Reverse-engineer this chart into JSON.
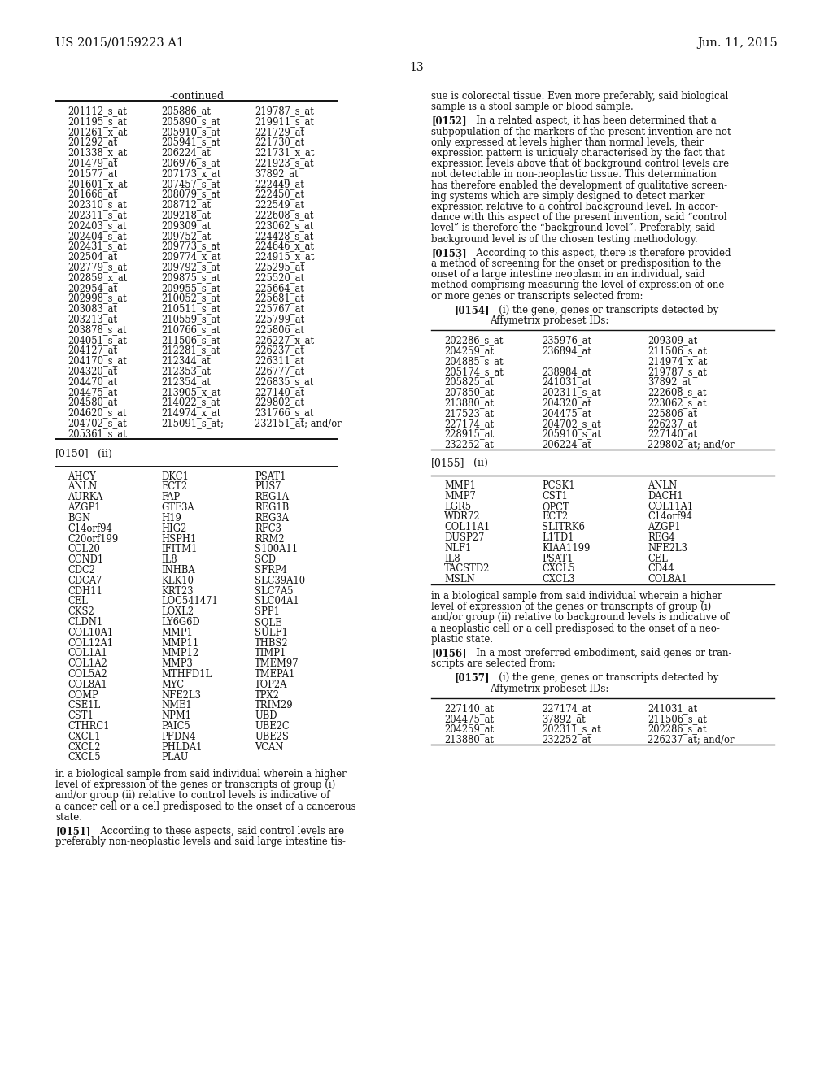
{
  "bg_color": "#ffffff",
  "header_left": "US 2015/0159223 A1",
  "header_right": "Jun. 11, 2015",
  "page_number": "13",
  "continued_label": "-continued",
  "t1c1": [
    "201112_s_at",
    "201195_s_at",
    "201261_x_at",
    "201292_at",
    "201338_x_at",
    "201479_at",
    "201577_at",
    "201601_x_at",
    "201666_at",
    "202310_s_at",
    "202311_s_at",
    "202403_s_at",
    "202404_s_at",
    "202431_s_at",
    "202504_at",
    "202779_s_at",
    "202859_x_at",
    "202954_at",
    "202998_s_at",
    "203083_at",
    "203213_at",
    "203878_s_at",
    "204051_s_at",
    "204127_at",
    "204170_s_at",
    "204320_at",
    "204470_at",
    "204475_at",
    "204580_at",
    "204620_s_at",
    "204702_s_at",
    "205361_s_at"
  ],
  "t1c2": [
    "205886_at",
    "205890_s_at",
    "205910_s_at",
    "205941_s_at",
    "206224_at",
    "206976_s_at",
    "207173_x_at",
    "207457_s_at",
    "208079_s_at",
    "208712_at",
    "209218_at",
    "209309_at",
    "209752_at",
    "209773_s_at",
    "209774_x_at",
    "209792_s_at",
    "209875_s_at",
    "209955_s_at",
    "210052_s_at",
    "210511_s_at",
    "210559_s_at",
    "210766_s_at",
    "211506_s_at",
    "212281_s_at",
    "212344_at",
    "212353_at",
    "212354_at",
    "213905_x_at",
    "214022_s_at",
    "214974_x_at",
    "215091_s_at;"
  ],
  "t1c3": [
    "219787_s_at",
    "219911_s_at",
    "221729_at",
    "221730_at",
    "221731_x_at",
    "221923_s_at",
    "37892_at",
    "222449_at",
    "222450_at",
    "222549_at",
    "222608_s_at",
    "223062_s_at",
    "224428_s_at",
    "224646_x_at",
    "224915_x_at",
    "225295_at",
    "225520_at",
    "225664_at",
    "225681_at",
    "225767_at",
    "225799_at",
    "225806_at",
    "226227_x_at",
    "226237_at",
    "226311_at",
    "226777_at",
    "226835_s_at",
    "227140_at",
    "229802_at",
    "231766_s_at",
    "232151_at; and/or"
  ],
  "t2c1": [
    "AHCY",
    "ANLN",
    "AURKA",
    "AZGP1",
    "BGN",
    "C14orf94",
    "C20orf199",
    "CCL20",
    "CCND1",
    "CDC2",
    "CDCA7",
    "CDH11",
    "CEL",
    "CKS2",
    "CLDN1",
    "COL10A1",
    "COL12A1",
    "COL1A1",
    "COL1A2",
    "COL5A2",
    "COL8A1",
    "COMP",
    "CSE1L",
    "CST1",
    "CTHRC1",
    "CXCL1",
    "CXCL2",
    "CXCL5"
  ],
  "t2c2": [
    "DKC1",
    "ECT2",
    "FAP",
    "GTF3A",
    "H19",
    "HIG2",
    "HSPH1",
    "IFITM1",
    "IL8",
    "INHBA",
    "KLK10",
    "KRT23",
    "LOC541471",
    "LOXL2",
    "LY6G6D",
    "MMP1",
    "MMP11",
    "MMP12",
    "MMP3",
    "MTHFD1L",
    "MYC",
    "NFE2L3",
    "NME1",
    "NPM1",
    "PAIC5",
    "PFDN4",
    "PHLDA1",
    "PLAU"
  ],
  "t2c3": [
    "PSAT1",
    "PUS7",
    "REG1A",
    "REG1B",
    "REG3A",
    "RFC3",
    "RRM2",
    "S100A11",
    "SCD",
    "SFRP4",
    "SLC39A10",
    "SLC7A5",
    "SLC04A1",
    "SPP1",
    "SQLE",
    "SULF1",
    "THBS2",
    "TIMP1",
    "TMEM97",
    "TMEPA1",
    "TOP2A",
    "TPX2",
    "TRIM29",
    "UBD",
    "UBE2C",
    "UBE2S",
    "VCAN"
  ],
  "left_body1": [
    "in a biological sample from said individual wherein a higher",
    "level of expression of the genes or transcripts of group (i)",
    "and/or group (ii) relative to control levels is indicative of",
    "a cancer cell or a cell predisposed to the onset of a cancerous",
    "state."
  ],
  "left_p0151_label": "[0151]",
  "left_p0151": [
    "   According to these aspects, said control levels are",
    "preferably non-neoplastic levels and said large intestine tis-"
  ],
  "right_top": [
    "sue is colorectal tissue. Even more preferably, said biological",
    "sample is a stool sample or blood sample."
  ],
  "right_p0152_label": "[0152]",
  "right_p0152": [
    "   In a related aspect, it has been determined that a",
    "subpopulation of the markers of the present invention are not",
    "only expressed at levels higher than normal levels, their",
    "expression pattern is uniquely characterised by the fact that",
    "expression levels above that of background control levels are",
    "not detectable in non-neoplastic tissue. This determination",
    "has therefore enabled the development of qualitative screen-",
    "ing systems which are simply designed to detect marker",
    "expression relative to a control background level. In accor-",
    "dance with this aspect of the present invention, said “control",
    "level” is therefore the “background level”. Preferably, said",
    "background level is of the chosen testing methodology."
  ],
  "right_p0153_label": "[0153]",
  "right_p0153": [
    "   According to this aspect, there is therefore provided",
    "a method of screening for the onset or predisposition to the",
    "onset of a large intestine neoplasm in an individual, said",
    "method comprising measuring the level of expression of one",
    "or more genes or transcripts selected from:"
  ],
  "right_p0154_label": "[0154]",
  "right_p0154": [
    "   (i) the gene, genes or transcripts detected by",
    "Affymetrix probeset IDs:"
  ],
  "t3c1": [
    "202286_s_at",
    "204259_at",
    "204885_s_at",
    "205174_s_at",
    "205825_at",
    "207850_at",
    "213880_at",
    "217523_at",
    "227174_at",
    "228915_at",
    "232252_at"
  ],
  "t3c2": [
    "235976_at",
    "236894_at",
    "",
    "238984_at",
    "241031_at",
    "202311_s_at",
    "204320_at",
    "204475_at",
    "204702_s_at",
    "205910_s_at",
    "206224_at"
  ],
  "t3c3": [
    "209309_at",
    "211506_s_at",
    "214974_x_at",
    "219787_s_at",
    "37892_at",
    "222608_s_at",
    "223062_s_at",
    "225806_at",
    "226237_at",
    "227140_at",
    "229802_at; and/or"
  ],
  "right_p0155_label": "[0155]   (ii)",
  "t4c1": [
    "MMP1",
    "MMP7",
    "LGR5",
    "WDR72",
    "COL11A1",
    "DUSP27",
    "NLF1",
    "IL8",
    "TACSTD2",
    "MSLN"
  ],
  "t4c2": [
    "PCSK1",
    "CST1",
    "QPCT",
    "ECT2",
    "SLITRK6",
    "L1TD1",
    "KIAA1199",
    "PSAT1",
    "CXCL5",
    "CXCL3"
  ],
  "t4c3": [
    "ANLN",
    "DACH1",
    "COL11A1",
    "C14orf94",
    "AZGP1",
    "REG4",
    "NFE2L3",
    "CEL",
    "CD44",
    "COL8A1"
  ],
  "right_body2": [
    "in a biological sample from said individual wherein a higher",
    "level of expression of the genes or transcripts of group (i)",
    "and/or group (ii) relative to background levels is indicative of",
    "a neoplastic cell or a cell predisposed to the onset of a neo-",
    "plastic state."
  ],
  "right_p0156_label": "[0156]",
  "right_p0156": [
    "   In a most preferred embodiment, said genes or tran-",
    "scripts are selected from:"
  ],
  "right_p0157_label": "[0157]",
  "right_p0157": [
    "   (i) the gene, genes or transcripts detected by",
    "Affymetrix probeset IDs:"
  ],
  "t5c1": [
    "227140_at",
    "204475_at",
    "204259_at",
    "213880_at"
  ],
  "t5c2": [
    "227174_at",
    "37892_at",
    "202311_s_at",
    "232252_at"
  ],
  "t5c3": [
    "241031_at",
    "211506_s_at",
    "202286_s_at",
    "226237_at; and/or"
  ]
}
